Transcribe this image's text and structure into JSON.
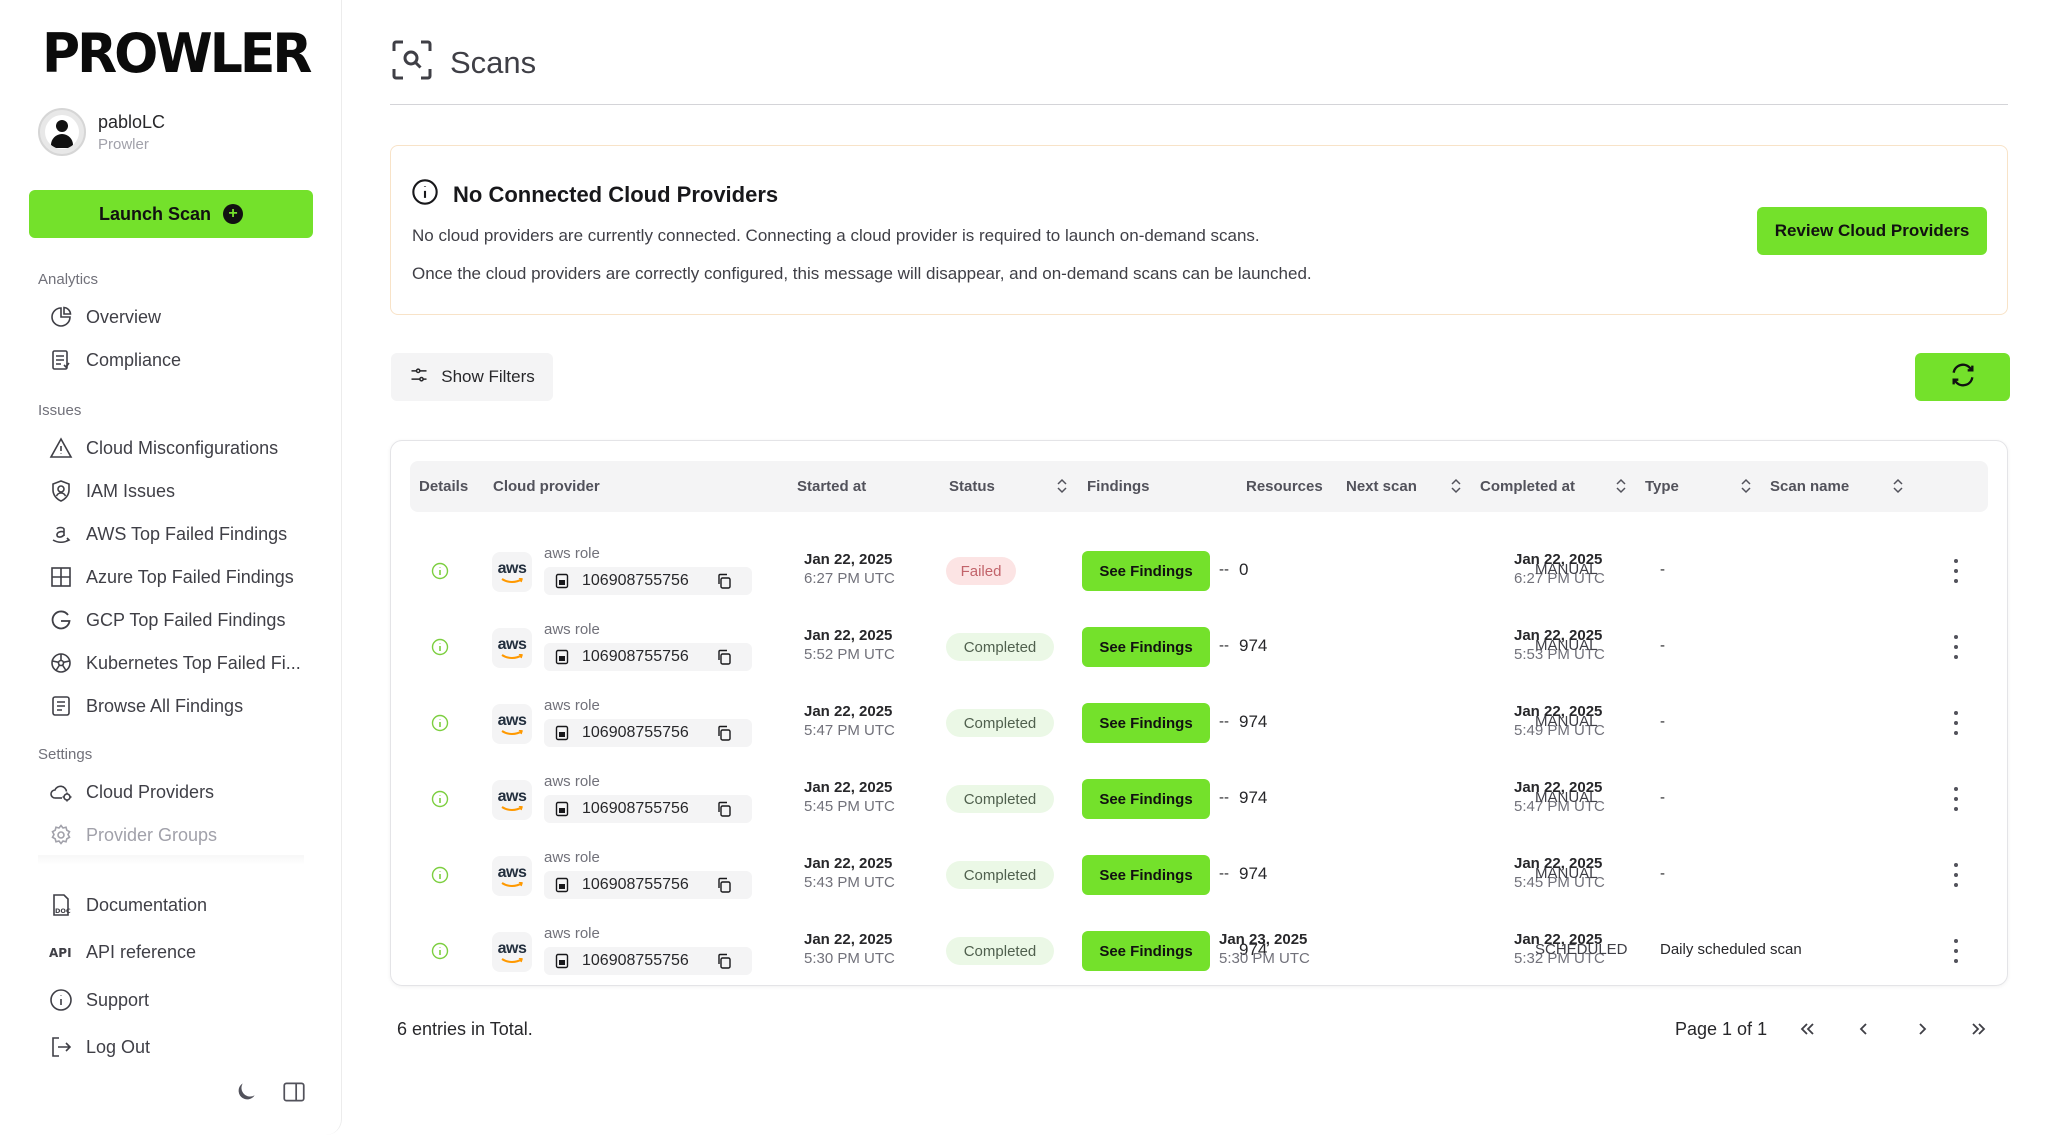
{
  "brand": {
    "logo_text": "PROWLER",
    "accent": "#74e12b"
  },
  "user": {
    "name": "pabloLC",
    "org": "Prowler"
  },
  "launch_button": "Launch Scan",
  "nav": {
    "analytics_label": "Analytics",
    "analytics": [
      {
        "label": "Overview",
        "icon": "pie-chart-icon"
      },
      {
        "label": "Compliance",
        "icon": "compliance-report-icon"
      }
    ],
    "issues_label": "Issues",
    "issues": [
      {
        "label": "Cloud Misconfigurations",
        "icon": "warning-triangle-icon"
      },
      {
        "label": "IAM Issues",
        "icon": "user-shield-icon"
      },
      {
        "label": "AWS Top Failed Findings",
        "icon": "amazon-icon"
      },
      {
        "label": "Azure Top Failed Findings",
        "icon": "windows-grid-icon"
      },
      {
        "label": "GCP Top Failed Findings",
        "icon": "google-icon"
      },
      {
        "label": "Kubernetes Top Failed Fi...",
        "icon": "kubernetes-wheel-icon"
      },
      {
        "label": "Browse All Findings",
        "icon": "document-list-icon"
      }
    ],
    "settings_label": "Settings",
    "settings": [
      {
        "label": "Cloud Providers",
        "icon": "cloud-settings-icon"
      },
      {
        "label": "Provider Groups",
        "icon": "gear-icon"
      }
    ],
    "footer": [
      {
        "label": "Documentation",
        "icon": "doc-icon"
      },
      {
        "label": "API reference",
        "icon": "api-icon"
      },
      {
        "label": "Support",
        "icon": "info-circle-icon"
      },
      {
        "label": "Log Out",
        "icon": "logout-icon"
      }
    ]
  },
  "page": {
    "title": "Scans"
  },
  "alert": {
    "title": "No Connected Cloud Providers",
    "line1": "No cloud providers are currently connected. Connecting a cloud provider is required to launch on-demand scans.",
    "line2": "Once the cloud providers are correctly configured, this message will disappear, and on-demand scans can be launched.",
    "button": "Review Cloud Providers"
  },
  "filters_button": "Show Filters",
  "table": {
    "headers": {
      "details": "Details",
      "provider": "Cloud provider",
      "started": "Started at",
      "status": "Status",
      "findings": "Findings",
      "resources": "Resources",
      "next": "Next scan",
      "completed": "Completed at",
      "type": "Type",
      "name": "Scan name"
    },
    "rows": [
      {
        "provider_logo": "aws",
        "alias": "aws role",
        "uid": "106908755756",
        "started_date": "Jan 22, 2025",
        "started_time": "6:27 PM UTC",
        "status": "Failed",
        "findings": "See Findings",
        "resources": "0",
        "next_date": "--",
        "next_time": "",
        "completed_date": "Jan 22, 2025",
        "completed_time": "6:27 PM UTC",
        "type": "MANUAL",
        "name": "-"
      },
      {
        "provider_logo": "aws",
        "alias": "aws role",
        "uid": "106908755756",
        "started_date": "Jan 22, 2025",
        "started_time": "5:52 PM UTC",
        "status": "Completed",
        "findings": "See Findings",
        "resources": "974",
        "next_date": "--",
        "next_time": "",
        "completed_date": "Jan 22, 2025",
        "completed_time": "5:53 PM UTC",
        "type": "MANUAL",
        "name": "-"
      },
      {
        "provider_logo": "aws",
        "alias": "aws role",
        "uid": "106908755756",
        "started_date": "Jan 22, 2025",
        "started_time": "5:47 PM UTC",
        "status": "Completed",
        "findings": "See Findings",
        "resources": "974",
        "next_date": "--",
        "next_time": "",
        "completed_date": "Jan 22, 2025",
        "completed_time": "5:49 PM UTC",
        "type": "MANUAL",
        "name": "-"
      },
      {
        "provider_logo": "aws",
        "alias": "aws role",
        "uid": "106908755756",
        "started_date": "Jan 22, 2025",
        "started_time": "5:45 PM UTC",
        "status": "Completed",
        "findings": "See Findings",
        "resources": "974",
        "next_date": "--",
        "next_time": "",
        "completed_date": "Jan 22, 2025",
        "completed_time": "5:47 PM UTC",
        "type": "MANUAL",
        "name": "-"
      },
      {
        "provider_logo": "aws",
        "alias": "aws role",
        "uid": "106908755756",
        "started_date": "Jan 22, 2025",
        "started_time": "5:43 PM UTC",
        "status": "Completed",
        "findings": "See Findings",
        "resources": "974",
        "next_date": "--",
        "next_time": "",
        "completed_date": "Jan 22, 2025",
        "completed_time": "5:45 PM UTC",
        "type": "MANUAL",
        "name": "-"
      },
      {
        "provider_logo": "aws",
        "alias": "aws role",
        "uid": "106908755756",
        "started_date": "Jan 22, 2025",
        "started_time": "5:30 PM UTC",
        "status": "Completed",
        "findings": "See Findings",
        "resources": "974",
        "next_date": "Jan 23, 2025",
        "next_time": "5:30 PM UTC",
        "completed_date": "Jan 22, 2025",
        "completed_time": "5:32 PM UTC",
        "type": "SCHEDULED",
        "name": "Daily scheduled scan"
      }
    ]
  },
  "footer": {
    "total": "6 entries in Total.",
    "page_info": "Page 1 of 1",
    "first": "«",
    "prev": "‹",
    "next": "›",
    "last": "»"
  }
}
